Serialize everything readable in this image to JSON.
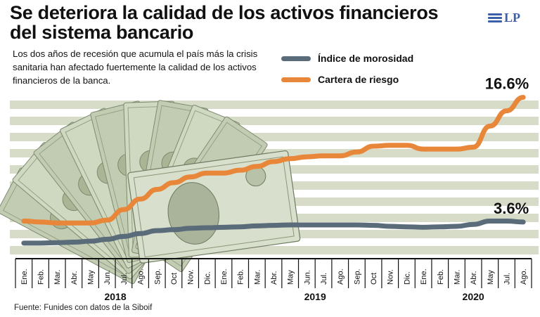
{
  "title": "Se deteriora la calidad de los activos financieros del sistema bancario",
  "subtitle": "Los dos años de recesión que acumula el país más la crisis sanitaria han afectado fuertemente la calidad de los activos financieros de la banca.",
  "logo": {
    "text": "LP",
    "icon": "flag-stripes-icon"
  },
  "source": "Fuente: Funides con datos de la Siboif",
  "colors": {
    "morosidad": "#5a6b7a",
    "cartera": "#e8863a",
    "band": "#d6dcc8",
    "axis": "#111111",
    "logo": "#3b5fa8"
  },
  "chart_data": {
    "type": "line",
    "x": [
      "Ene.",
      "Feb.",
      "Mar.",
      "Abr.",
      "May",
      "Jun.",
      "Jul.",
      "Ago.",
      "Sep.",
      "Oct",
      "Nov.",
      "Dic.",
      "Ene.",
      "Feb.",
      "Mar.",
      "Abr.",
      "May",
      "Jun.",
      "Jul.",
      "Ago.",
      "Sep.",
      "Oct",
      "Nov.",
      "Dic.",
      "Ene.",
      "Feb.",
      "Mar.",
      "Abr.",
      "May",
      "Jul.",
      "Ago."
    ],
    "years": [
      {
        "label": "2018",
        "start": 0,
        "end": 11
      },
      {
        "label": "2019",
        "start": 12,
        "end": 23
      },
      {
        "label": "2020",
        "start": 24,
        "end": 30
      }
    ],
    "series": [
      {
        "name": "Índice de morosidad",
        "values": [
          1.4,
          1.4,
          1.45,
          1.5,
          1.6,
          1.8,
          2.1,
          2.4,
          2.7,
          2.8,
          2.95,
          3.0,
          3.05,
          3.1,
          3.2,
          3.25,
          3.3,
          3.3,
          3.3,
          3.3,
          3.3,
          3.25,
          3.15,
          3.1,
          3.05,
          3.1,
          3.15,
          3.35,
          3.7,
          3.7,
          3.6
        ]
      },
      {
        "name": "Cartera de riesgo",
        "values": [
          3.7,
          3.6,
          3.5,
          3.5,
          3.5,
          3.8,
          4.9,
          6.0,
          7.0,
          7.7,
          8.3,
          8.7,
          8.7,
          9.0,
          9.4,
          9.9,
          10.2,
          10.4,
          10.5,
          10.5,
          10.9,
          11.5,
          11.6,
          11.6,
          11.2,
          11.2,
          11.2,
          11.4,
          13.6,
          15.2,
          16.6
        ]
      }
    ],
    "annotations": [
      {
        "series": "Cartera de riesgo",
        "text": "16.6%"
      },
      {
        "series": "Índice de morosidad",
        "text": "3.6%"
      }
    ],
    "ylim": [
      0,
      17
    ],
    "grid": true,
    "legend_position": "top-center"
  }
}
